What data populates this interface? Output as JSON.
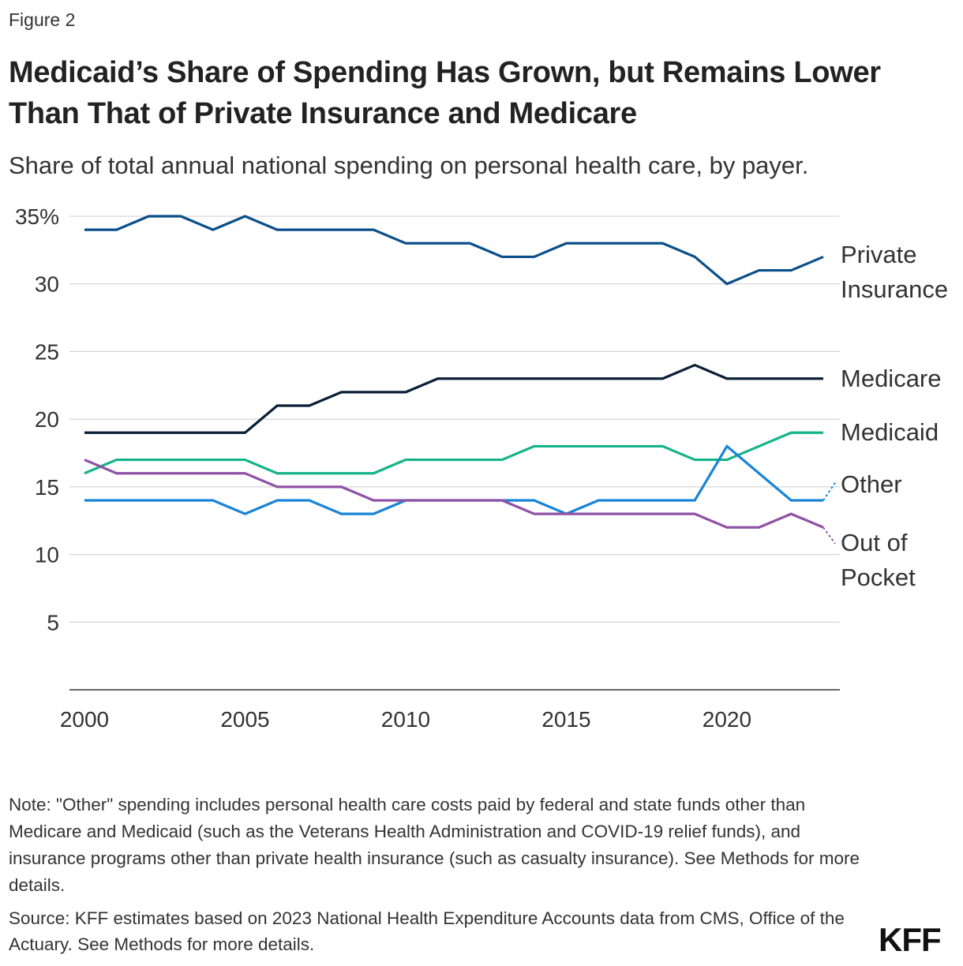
{
  "figure_label": "Figure 2",
  "title": "Medicaid’s Share of Spending Has Grown, but Remains Lower Than That of Private Insurance and Medicare",
  "subtitle": "Share of total annual national spending on personal health care, by payer.",
  "note": "Note: \"Other\" spending includes personal health care costs paid by federal and state funds other than Medicare and Medicaid (such as the Veterans Health Administration and COVID-19 relief funds), and insurance programs other than private health insurance (such as casualty insurance). See Methods for more details.",
  "source": "Source: KFF estimates based on 2023 National Health Expenditure Accounts data from CMS, Office of the Actuary. See Methods for more details.",
  "logo": "KFF",
  "chart_data": {
    "type": "line",
    "title": "",
    "xlabel": "",
    "ylabel": "",
    "x": [
      2000,
      2001,
      2002,
      2003,
      2004,
      2005,
      2006,
      2007,
      2008,
      2009,
      2010,
      2011,
      2012,
      2013,
      2014,
      2015,
      2016,
      2017,
      2018,
      2019,
      2020,
      2021,
      2022,
      2023
    ],
    "xlim": [
      2000,
      2023
    ],
    "ylim": [
      0,
      35
    ],
    "x_ticks": [
      "2000",
      "2005",
      "2010",
      "2015",
      "2020"
    ],
    "y_ticks": [
      "35%",
      "30",
      "25",
      "20",
      "15",
      "10",
      "5"
    ],
    "grid": "horizontal",
    "legend": "direct labels at right end",
    "series": [
      {
        "name": "Private Insurance",
        "label_lines": [
          "Private",
          "Insurance"
        ],
        "color": "#0b4f8a",
        "values": [
          34,
          34,
          35,
          35,
          34,
          35,
          34,
          34,
          34,
          34,
          33,
          33,
          33,
          32,
          32,
          33,
          33,
          33,
          33,
          32,
          30,
          31,
          31,
          32
        ]
      },
      {
        "name": "Medicare",
        "label_lines": [
          "Medicare"
        ],
        "color": "#0a1e36",
        "values": [
          19,
          19,
          19,
          19,
          19,
          19,
          21,
          21,
          22,
          22,
          22,
          23,
          23,
          23,
          23,
          23,
          23,
          23,
          23,
          24,
          23,
          23,
          23,
          23
        ]
      },
      {
        "name": "Medicaid",
        "label_lines": [
          "Medicaid"
        ],
        "color": "#14b389",
        "values": [
          16,
          17,
          17,
          17,
          17,
          17,
          16,
          16,
          16,
          16,
          17,
          17,
          17,
          17,
          18,
          18,
          18,
          18,
          18,
          17,
          17,
          18,
          19,
          19
        ]
      },
      {
        "name": "Other",
        "label_lines": [
          "Other"
        ],
        "color": "#1a84d6",
        "values": [
          14,
          14,
          14,
          14,
          14,
          13,
          14,
          14,
          13,
          13,
          14,
          14,
          14,
          14,
          14,
          13,
          14,
          14,
          14,
          14,
          18,
          16,
          14,
          14
        ]
      },
      {
        "name": "Out of Pocket",
        "label_lines": [
          "Out of",
          "Pocket"
        ],
        "color": "#9052a6",
        "values": [
          17,
          16,
          16,
          16,
          16,
          16,
          15,
          15,
          15,
          14,
          14,
          14,
          14,
          14,
          13,
          13,
          13,
          13,
          13,
          13,
          12,
          12,
          13,
          12
        ]
      }
    ]
  }
}
